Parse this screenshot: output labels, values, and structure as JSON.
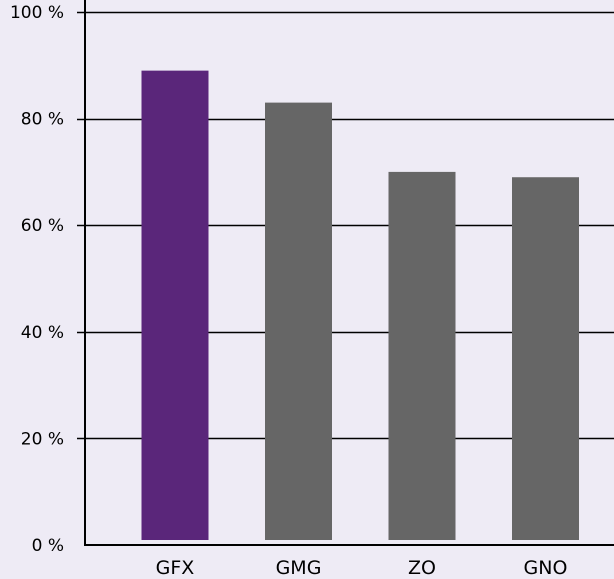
{
  "chart_data": {
    "type": "bar",
    "categories": [
      "GFX",
      "GMG",
      "ZO",
      "GNO"
    ],
    "values": [
      89,
      83,
      70,
      69
    ],
    "value_unit": "%",
    "y_tick_labels": [
      "0 %",
      "20 %",
      "40 %",
      "60 %",
      "80 %",
      "100 %"
    ],
    "y_ticks": [
      0,
      20,
      40,
      60,
      80,
      100
    ],
    "ylim": [
      0,
      100
    ],
    "title": "",
    "xlabel": "",
    "ylabel": "",
    "grid": true,
    "legend": "none"
  },
  "colors": {
    "background": "#eeebf5",
    "highlight_bar": "#5a267a",
    "bar": "#666666",
    "gridline": "#000000",
    "axis": "#000000"
  }
}
